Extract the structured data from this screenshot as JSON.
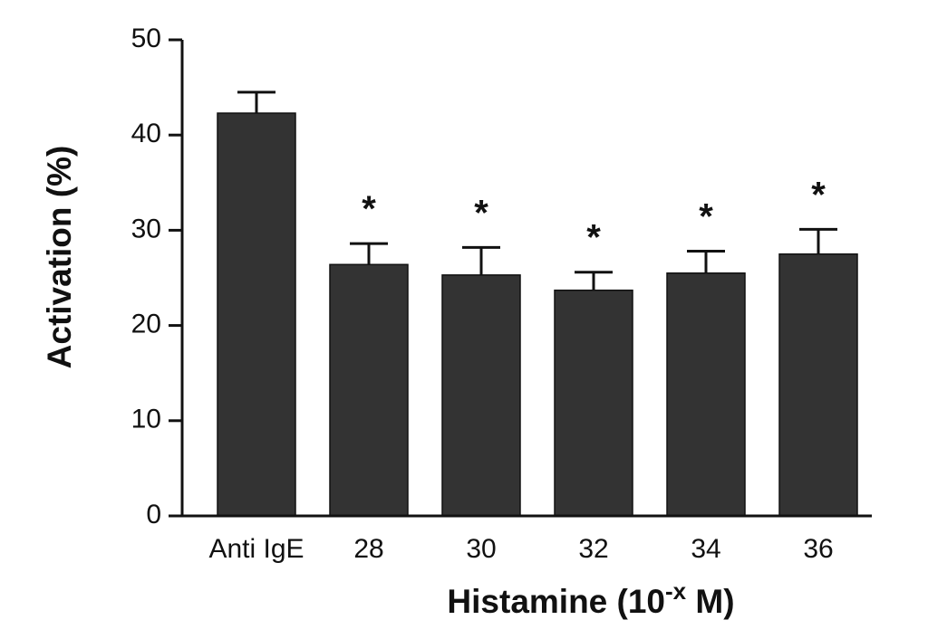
{
  "chart_data": {
    "type": "bar",
    "title": "",
    "categories": [
      "Anti IgE",
      "28",
      "30",
      "32",
      "34",
      "36"
    ],
    "values": [
      42.3,
      26.4,
      25.3,
      23.7,
      25.5,
      27.5
    ],
    "error_upper": [
      44.5,
      28.6,
      28.2,
      25.6,
      27.8,
      30.1
    ],
    "significance": [
      "",
      "*",
      "*",
      "*",
      "*",
      "*"
    ],
    "ylabel": "Activation (%)",
    "xlabel": {
      "main": "Histamine (10",
      "superscript": "-x",
      "suffix": " M)"
    },
    "ylim": [
      0,
      50
    ],
    "yticks": [
      "0",
      "10",
      "20",
      "30",
      "40",
      "50"
    ],
    "bar_color": "#333333",
    "grid": false
  }
}
